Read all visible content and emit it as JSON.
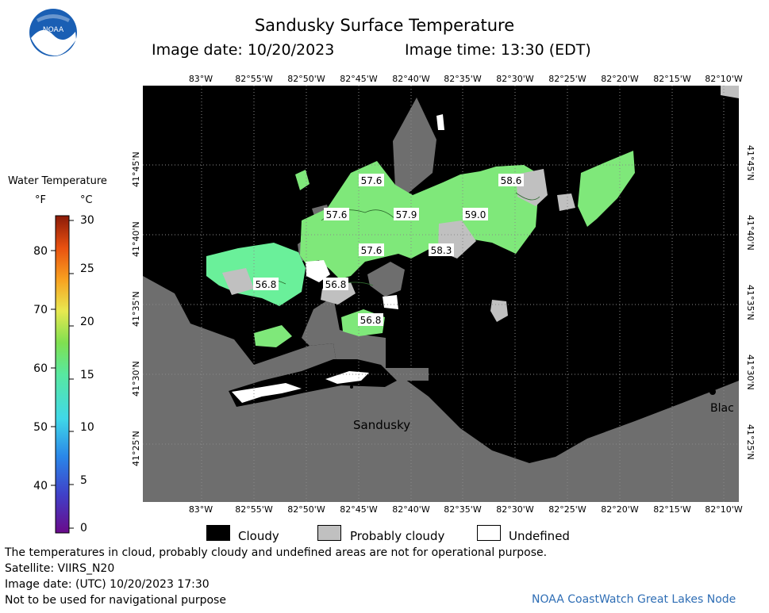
{
  "header": {
    "title": "Sandusky Surface Temperature",
    "image_date": "Image date: 10/20/2023",
    "image_time": "Image time: 13:30 (EDT)"
  },
  "logo": {
    "text": "NOAA",
    "icon": "noaa-logo-icon"
  },
  "map": {
    "lon_labels": [
      "83°W",
      "82°55'W",
      "82°50'W",
      "82°45'W",
      "82°40'W",
      "82°35'W",
      "82°30'W",
      "82°25'W",
      "82°20'W",
      "82°15'W",
      "82°10'W"
    ],
    "lat_labels": [
      "41°45'N",
      "41°40'N",
      "41°35'N",
      "41°30'N",
      "41°25'N"
    ],
    "place_labels": {
      "sandusky": "Sandusky",
      "cut_label": "Blac"
    },
    "temp_labels": [
      "57.6",
      "58.6",
      "57.6",
      "57.9",
      "59.0",
      "57.6",
      "58.3",
      "56.8",
      "56.8",
      "56.8"
    ],
    "colors": {
      "cloudy": "#000000",
      "probably_cloudy": "#c0c0c0",
      "land": "#6e6e6e",
      "water_warm": "#7fe87a",
      "water_cool": "#6af09a",
      "undefined": "#ffffff"
    }
  },
  "colorbar": {
    "title": "Water Temperature",
    "unit_f": "°F",
    "unit_c": "°C",
    "ticks_f": [
      "80",
      "70",
      "60",
      "50",
      "40"
    ],
    "ticks_c": [
      "30",
      "25",
      "20",
      "15",
      "10",
      "5",
      "0"
    ]
  },
  "legend": {
    "cloudy": "Cloudy",
    "probably_cloudy": "Probably cloudy",
    "undefined": "Undefined"
  },
  "footer": {
    "disclaimer": "The temperatures in cloud, probably cloudy and undefined areas are not for operational purpose.",
    "satellite": "Satellite: VIIRS_N20",
    "utc_date": "Image date: (UTC) 10/20/2023  17:30",
    "navigation": "Not to be used for navigational purpose",
    "credit": "NOAA CoastWatch Great Lakes Node"
  }
}
